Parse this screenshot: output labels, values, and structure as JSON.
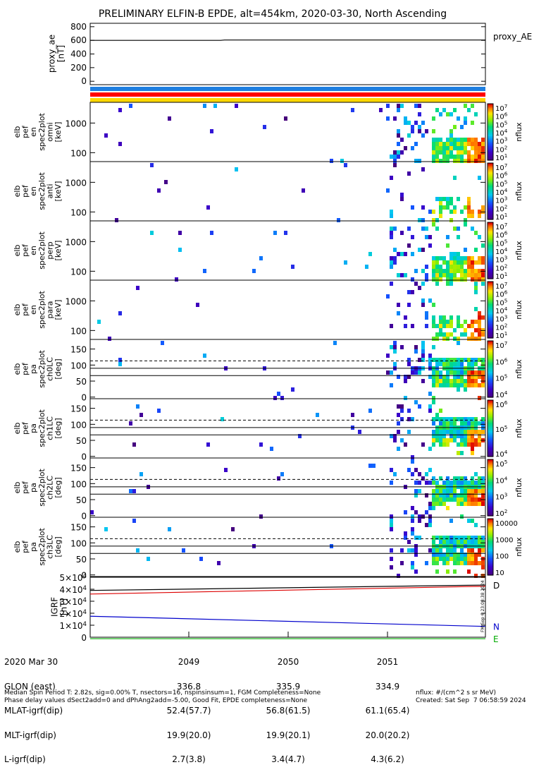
{
  "chart_data": {
    "type": "heatmap",
    "title": "PRELIMINARY ELFIN-B EPDE, alt=454km, 2020-03-30, North Ascending",
    "proxy_ae": {
      "ylabel": "proxy_ae\n[nT]",
      "legend": "proxy_AE",
      "yticks": [
        "800",
        "600",
        "400",
        "200",
        "0"
      ],
      "ylim": [
        -50,
        850
      ],
      "x": [
        0,
        0.33,
        0.34,
        1.0
      ],
      "y": [
        600,
        600,
        605,
        605
      ]
    },
    "color_bars": [
      "#1f7fe0",
      "#ff0000",
      "#ffd700"
    ],
    "panels": [
      {
        "ylabel": "elb\npef\nen\nspec2plot\nomni\n[keV]",
        "yticks": [
          "1000",
          "100"
        ],
        "cb_ticks": [
          "10^7",
          "10^6",
          "10^5",
          "10^4",
          "10^3",
          "10^2",
          "10^1"
        ],
        "cb_label": "nflux"
      },
      {
        "ylabel": "elb\npef\nen\nspec2plot\nanti\n[keV]",
        "yticks": [
          "1000",
          "100"
        ],
        "cb_ticks": [
          "10^7",
          "10^6",
          "10^5",
          "10^4",
          "10^3",
          "10^2",
          "10^1"
        ],
        "cb_label": "nflux"
      },
      {
        "ylabel": "elb\npef\nen\nspec2plot\nperp\n[keV]",
        "yticks": [
          "1000",
          "100"
        ],
        "cb_ticks": [
          "10^7",
          "10^6",
          "10^5",
          "10^4",
          "10^3",
          "10^2",
          "10^1"
        ],
        "cb_label": "nflux"
      },
      {
        "ylabel": "elb\npef\nen\nspec2plot\npara\n[keV]",
        "yticks": [
          "1000",
          "100"
        ],
        "cb_ticks": [
          "10^7",
          "10^6",
          "10^5",
          "10^4",
          "10^3",
          "10^2",
          "10^1"
        ],
        "cb_label": "nflux"
      },
      {
        "ylabel": "elb\npef\npa\nspec2plot\nch0LC\n[deg]",
        "yticks": [
          "150",
          "100",
          "50",
          "0"
        ],
        "cb_ticks": [
          "10^7",
          "10^6",
          "10^5",
          "10^4"
        ],
        "cb_label": "nflux"
      },
      {
        "ylabel": "elb\npef\npa\nspec2plot\nch1LC\n[deg]",
        "yticks": [
          "150",
          "100",
          "50",
          "0"
        ],
        "cb_ticks": [
          "10^6",
          "10^5",
          "10^4"
        ],
        "cb_label": "nflux"
      },
      {
        "ylabel": "elb\npef\npa\nspec2plot\nch2LC\n[deg]",
        "yticks": [
          "150",
          "100",
          "50",
          "0"
        ],
        "cb_ticks": [
          "10^5",
          "10^4",
          "10^3",
          "10^2"
        ],
        "cb_label": "nflux"
      },
      {
        "ylabel": "elb\npef\npa\nspec2plot\nch3LC\n[deg]",
        "yticks": [
          "150",
          "100",
          "50",
          "0"
        ],
        "cb_ticks": [
          "10000",
          "1000",
          "100",
          "10"
        ],
        "cb_label": "nflux"
      }
    ],
    "igrf": {
      "ylabel": "IGRF\n[nT]",
      "yticks": [
        "5×10^4",
        "4×10^4",
        "3×10^4",
        "2×10^4",
        "1×10^4",
        "0"
      ],
      "ylim": [
        0,
        50000
      ],
      "series": [
        {
          "name": "D",
          "color": "#000000",
          "x": [
            0,
            1
          ],
          "y": [
            39000,
            43500
          ]
        },
        {
          "name": "",
          "color": "#dd0000",
          "x": [
            0,
            1
          ],
          "y": [
            36000,
            42500
          ]
        },
        {
          "name": "N",
          "color": "#0000cc",
          "x": [
            0,
            1
          ],
          "y": [
            17500,
            9000
          ]
        },
        {
          "name": "E",
          "color": "#00aa00",
          "x": [
            0,
            1
          ],
          "y": [
            -1200,
            -1200
          ]
        }
      ],
      "side_note": "FM Sep 6 23:08:38 2024"
    },
    "pa_lines": {
      "dashed": 113,
      "solid": [
        90,
        67
      ]
    }
  },
  "orbit": {
    "row_labels": [
      "2020 Mar 30",
      "GLON (east)",
      "MLAT-igrf(dip)",
      "MLT-igrf(dip)",
      "L-igrf(dip)"
    ],
    "columns": [
      {
        "time": "2049",
        "glon": "336.8",
        "mlat": "52.4(57.7)",
        "mlt": "19.9(20.0)",
        "l": "2.7(3.8)"
      },
      {
        "time": "2050",
        "glon": "335.9",
        "mlat": "56.8(61.5)",
        "mlt": "19.9(20.1)",
        "l": "3.4(4.7)"
      },
      {
        "time": "2051",
        "glon": "334.9",
        "mlat": "61.1(65.4)",
        "mlt": "20.0(20.2)",
        "l": "4.3(6.2)"
      }
    ]
  },
  "footer": {
    "line1": "Median Spin Period T: 2.82s, sig=0.00% T, nsectors=16, nspinsinsum=1, FGM Completeness=None",
    "line2": "Phase delay values dSect2add=0 and dPhAng2add=-5.00, Good Fit, EPDE completeness=None",
    "units": "nflux: #/(cm^2 s sr MeV)",
    "created": "Created: Sat Sep  7 06:58:59 2024"
  }
}
